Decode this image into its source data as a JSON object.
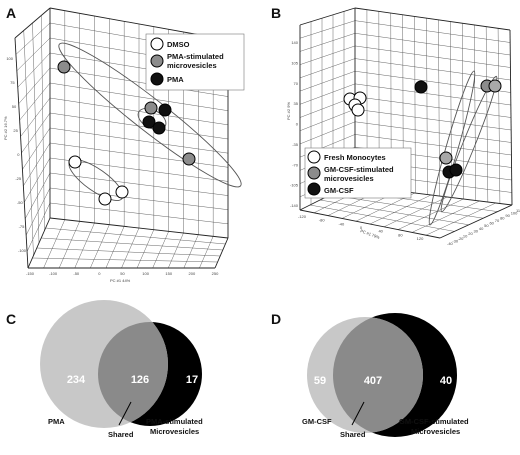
{
  "panels": {
    "a": {
      "letter": "A",
      "legend": [
        {
          "label": "DMSO",
          "color": "#ffffff"
        },
        {
          "label": "PMA-stimulated",
          "color": "#8c8c8c"
        },
        {
          "label": "microvesicles",
          "color": null
        },
        {
          "label": "PMA",
          "color": "#111111"
        }
      ],
      "y_ticks": [
        "100",
        "75",
        "50",
        "25",
        "0",
        "-25",
        "-50",
        "-75",
        "-100"
      ],
      "x_ticks": [
        "-150",
        "-100",
        "-50",
        "0",
        "50",
        "100",
        "150",
        "200",
        "250"
      ],
      "x_axis_label": "PC #1 44%",
      "y_axis_label": "PC #2 16.7%"
    },
    "b": {
      "letter": "B",
      "legend": [
        {
          "label": "Fresh Monocytes",
          "color": "#ffffff"
        },
        {
          "label": "GM-CSF-stimulated",
          "color": "#8c8c8c"
        },
        {
          "label": "microvesicles",
          "color": null
        },
        {
          "label": "GM-CSF",
          "color": "#111111"
        }
      ],
      "y_ticks": [
        "140",
        "105",
        "70",
        "35",
        "0",
        "-35",
        "-70",
        "-105",
        "-140"
      ],
      "x_ticks": [
        "-120",
        "-80",
        "-40",
        "0",
        "40",
        "80",
        "120"
      ],
      "z_ticks": [
        "-40",
        "-30",
        "-20",
        "10",
        "20",
        "30",
        "40",
        "50",
        "60",
        "70",
        "80",
        "90",
        "100",
        "110"
      ],
      "x_axis_label": "PC #1 79%",
      "y_axis_label": "PC #2 9%"
    },
    "c": {
      "letter": "C",
      "counts": {
        "left_only": "234",
        "shared": "126",
        "right_only": "17"
      },
      "labels": {
        "left": "PMA",
        "shared": "Shared",
        "right_line1": "PMA-stimulated",
        "right_line2": "Microvesicles"
      }
    },
    "d": {
      "letter": "D",
      "counts": {
        "left_only": "59",
        "shared": "407",
        "right_only": "40"
      },
      "labels": {
        "left": "GM-CSF",
        "shared": "Shared",
        "right_line1": "GM-CSF-stimulated",
        "right_line2": "Microvesicles"
      }
    }
  },
  "colors": {
    "venn_light": "#c8c8c8",
    "venn_mid": "#8a8a8a",
    "venn_dark": "#000000",
    "marker_white": "#ffffff",
    "marker_gray": "#8c8c8c",
    "marker_black": "#111111"
  }
}
